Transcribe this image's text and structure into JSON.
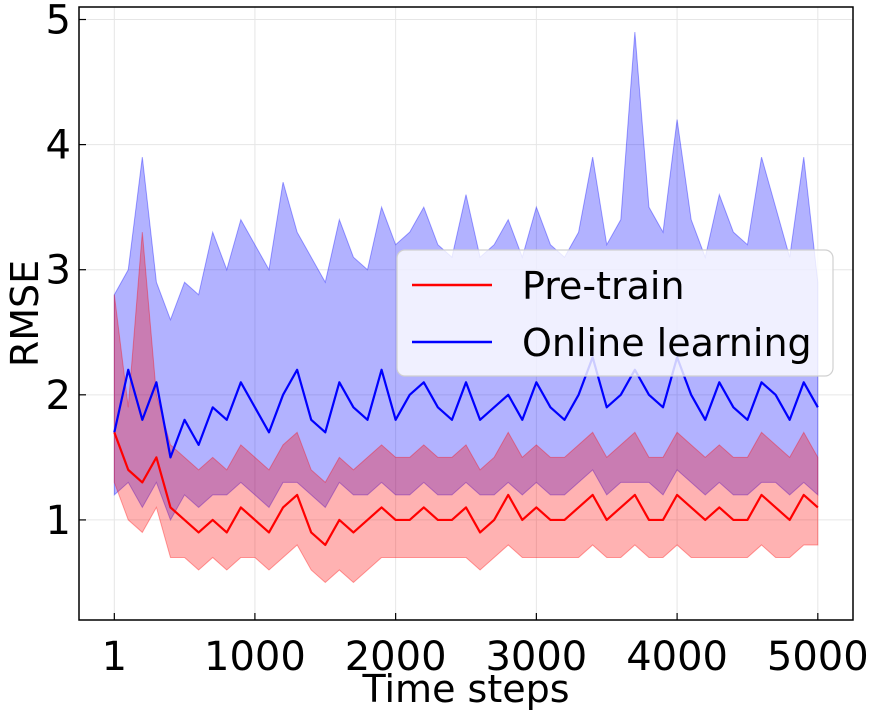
{
  "chart_data": {
    "type": "line",
    "xlabel": "Time steps",
    "ylabel": "RMSE",
    "xlim": [
      -250,
      5250
    ],
    "ylim": [
      0.2,
      5.1
    ],
    "xticks": [
      1,
      1000,
      2000,
      3000,
      4000,
      5000
    ],
    "xtick_labels": [
      "1",
      "1000",
      "2000",
      "3000",
      "4000",
      "5000"
    ],
    "yticks": [
      1,
      2,
      3,
      4,
      5
    ],
    "ytick_labels": [
      "1",
      "2",
      "3",
      "4",
      "5"
    ],
    "grid": true,
    "legend_position": "center-right",
    "series": [
      {
        "name": "Online learning",
        "color": "#0000ff",
        "x": [
          1,
          100,
          200,
          300,
          400,
          500,
          600,
          700,
          800,
          900,
          1000,
          1100,
          1200,
          1300,
          1400,
          1500,
          1600,
          1700,
          1800,
          1900,
          2000,
          2100,
          2200,
          2300,
          2400,
          2500,
          2600,
          2700,
          2800,
          2900,
          3000,
          3100,
          3200,
          3300,
          3400,
          3500,
          3600,
          3700,
          3800,
          3900,
          4000,
          4100,
          4200,
          4300,
          4400,
          4500,
          4600,
          4700,
          4800,
          4900,
          5000
        ],
        "mean": [
          1.7,
          2.2,
          1.8,
          2.1,
          1.5,
          1.8,
          1.6,
          1.9,
          1.8,
          2.1,
          1.9,
          1.7,
          2.0,
          2.2,
          1.8,
          1.7,
          2.1,
          1.9,
          1.8,
          2.2,
          1.8,
          2.0,
          2.1,
          1.9,
          1.8,
          2.1,
          1.8,
          1.9,
          2.0,
          1.8,
          2.1,
          1.9,
          1.8,
          2.0,
          2.3,
          1.9,
          2.0,
          2.2,
          2.0,
          1.9,
          2.3,
          2.0,
          1.8,
          2.1,
          1.9,
          1.8,
          2.1,
          2.0,
          1.8,
          2.1,
          1.9
        ],
        "lower": [
          1.2,
          1.3,
          1.1,
          1.3,
          1.0,
          1.2,
          1.1,
          1.2,
          1.2,
          1.3,
          1.2,
          1.1,
          1.3,
          1.3,
          1.2,
          1.1,
          1.3,
          1.2,
          1.2,
          1.3,
          1.2,
          1.2,
          1.3,
          1.2,
          1.2,
          1.3,
          1.2,
          1.2,
          1.3,
          1.2,
          1.3,
          1.2,
          1.2,
          1.3,
          1.4,
          1.2,
          1.3,
          1.3,
          1.3,
          1.2,
          1.4,
          1.3,
          1.2,
          1.3,
          1.2,
          1.2,
          1.3,
          1.3,
          1.2,
          1.3,
          1.2
        ],
        "upper": [
          2.8,
          3.0,
          3.9,
          2.9,
          2.6,
          2.9,
          2.8,
          3.3,
          3.0,
          3.4,
          3.2,
          3.0,
          3.7,
          3.3,
          3.1,
          2.9,
          3.4,
          3.1,
          3.0,
          3.5,
          3.2,
          3.3,
          3.5,
          3.2,
          3.1,
          3.6,
          3.1,
          3.2,
          3.4,
          3.1,
          3.5,
          3.2,
          3.1,
          3.3,
          3.9,
          3.2,
          3.4,
          4.9,
          3.5,
          3.3,
          4.2,
          3.4,
          3.1,
          3.6,
          3.3,
          3.2,
          3.9,
          3.5,
          3.1,
          3.9,
          2.9
        ]
      },
      {
        "name": "Pre-train",
        "color": "#ff0000",
        "x": [
          1,
          100,
          200,
          300,
          400,
          500,
          600,
          700,
          800,
          900,
          1000,
          1100,
          1200,
          1300,
          1400,
          1500,
          1600,
          1700,
          1800,
          1900,
          2000,
          2100,
          2200,
          2300,
          2400,
          2500,
          2600,
          2700,
          2800,
          2900,
          3000,
          3100,
          3200,
          3300,
          3400,
          3500,
          3600,
          3700,
          3800,
          3900,
          4000,
          4100,
          4200,
          4300,
          4400,
          4500,
          4600,
          4700,
          4800,
          4900,
          5000
        ],
        "mean": [
          1.7,
          1.4,
          1.3,
          1.5,
          1.1,
          1.0,
          0.9,
          1.0,
          0.9,
          1.1,
          1.0,
          0.9,
          1.1,
          1.2,
          0.9,
          0.8,
          1.0,
          0.9,
          1.0,
          1.1,
          1.0,
          1.0,
          1.1,
          1.0,
          1.0,
          1.1,
          0.9,
          1.0,
          1.2,
          1.0,
          1.1,
          1.0,
          1.0,
          1.1,
          1.2,
          1.0,
          1.1,
          1.2,
          1.0,
          1.0,
          1.2,
          1.1,
          1.0,
          1.1,
          1.0,
          1.0,
          1.2,
          1.1,
          1.0,
          1.2,
          1.1
        ],
        "lower": [
          1.3,
          1.0,
          0.9,
          1.1,
          0.7,
          0.7,
          0.6,
          0.7,
          0.6,
          0.7,
          0.7,
          0.6,
          0.7,
          0.8,
          0.6,
          0.5,
          0.6,
          0.5,
          0.6,
          0.7,
          0.7,
          0.7,
          0.7,
          0.7,
          0.7,
          0.7,
          0.6,
          0.7,
          0.8,
          0.7,
          0.7,
          0.7,
          0.7,
          0.7,
          0.8,
          0.7,
          0.7,
          0.8,
          0.7,
          0.7,
          0.8,
          0.7,
          0.7,
          0.7,
          0.7,
          0.7,
          0.8,
          0.7,
          0.7,
          0.8,
          0.8
        ],
        "upper": [
          2.8,
          1.9,
          3.3,
          2.0,
          1.6,
          1.5,
          1.4,
          1.5,
          1.4,
          1.6,
          1.5,
          1.4,
          1.6,
          1.7,
          1.4,
          1.3,
          1.5,
          1.4,
          1.5,
          1.6,
          1.5,
          1.5,
          1.6,
          1.5,
          1.5,
          1.6,
          1.4,
          1.5,
          1.7,
          1.5,
          1.6,
          1.5,
          1.5,
          1.6,
          1.7,
          1.5,
          1.6,
          1.7,
          1.5,
          1.5,
          1.7,
          1.6,
          1.5,
          1.6,
          1.5,
          1.5,
          1.7,
          1.6,
          1.5,
          1.7,
          1.5
        ]
      }
    ]
  }
}
